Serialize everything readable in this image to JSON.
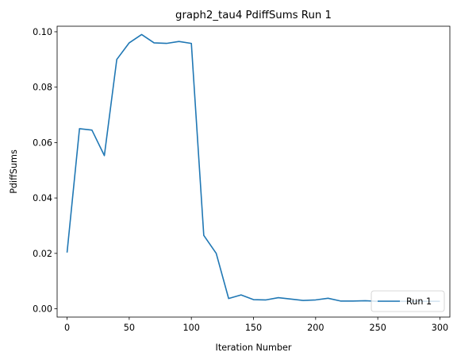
{
  "chart_data": {
    "type": "line",
    "title": "graph2_tau4 PdiffSums Run 1",
    "xlabel": "Iteration Number",
    "ylabel": "PdiffSums",
    "xlim": [
      -8,
      308
    ],
    "ylim": [
      -0.003,
      0.102
    ],
    "xticks": [
      {
        "value": 0,
        "label": "0"
      },
      {
        "value": 50,
        "label": "50"
      },
      {
        "value": 100,
        "label": "100"
      },
      {
        "value": 150,
        "label": "150"
      },
      {
        "value": 200,
        "label": "200"
      },
      {
        "value": 250,
        "label": "250"
      },
      {
        "value": 300,
        "label": "300"
      }
    ],
    "yticks": [
      {
        "value": 0.0,
        "label": "0.00"
      },
      {
        "value": 0.02,
        "label": "0.02"
      },
      {
        "value": 0.04,
        "label": "0.04"
      },
      {
        "value": 0.06,
        "label": "0.06"
      },
      {
        "value": 0.08,
        "label": "0.08"
      },
      {
        "value": 0.1,
        "label": "0.10"
      }
    ],
    "grid": false,
    "legend_position": "lower-right",
    "series": [
      {
        "name": "Run 1",
        "color": "#1f77b4",
        "x": [
          0,
          10,
          20,
          30,
          40,
          50,
          60,
          70,
          80,
          90,
          100,
          110,
          120,
          130,
          140,
          150,
          160,
          170,
          180,
          190,
          200,
          210,
          220,
          230,
          240,
          250,
          260,
          270,
          280,
          290,
          300
        ],
        "y": [
          0.0203,
          0.065,
          0.0645,
          0.0553,
          0.09,
          0.096,
          0.099,
          0.096,
          0.0958,
          0.0965,
          0.0958,
          0.0265,
          0.02,
          0.0037,
          0.005,
          0.0033,
          0.0032,
          0.004,
          0.0035,
          0.003,
          0.0032,
          0.0038,
          0.0028,
          0.0028,
          0.0029,
          0.0027,
          0.0027,
          0.0027,
          0.0027,
          0.0027,
          0.0027
        ]
      }
    ]
  }
}
